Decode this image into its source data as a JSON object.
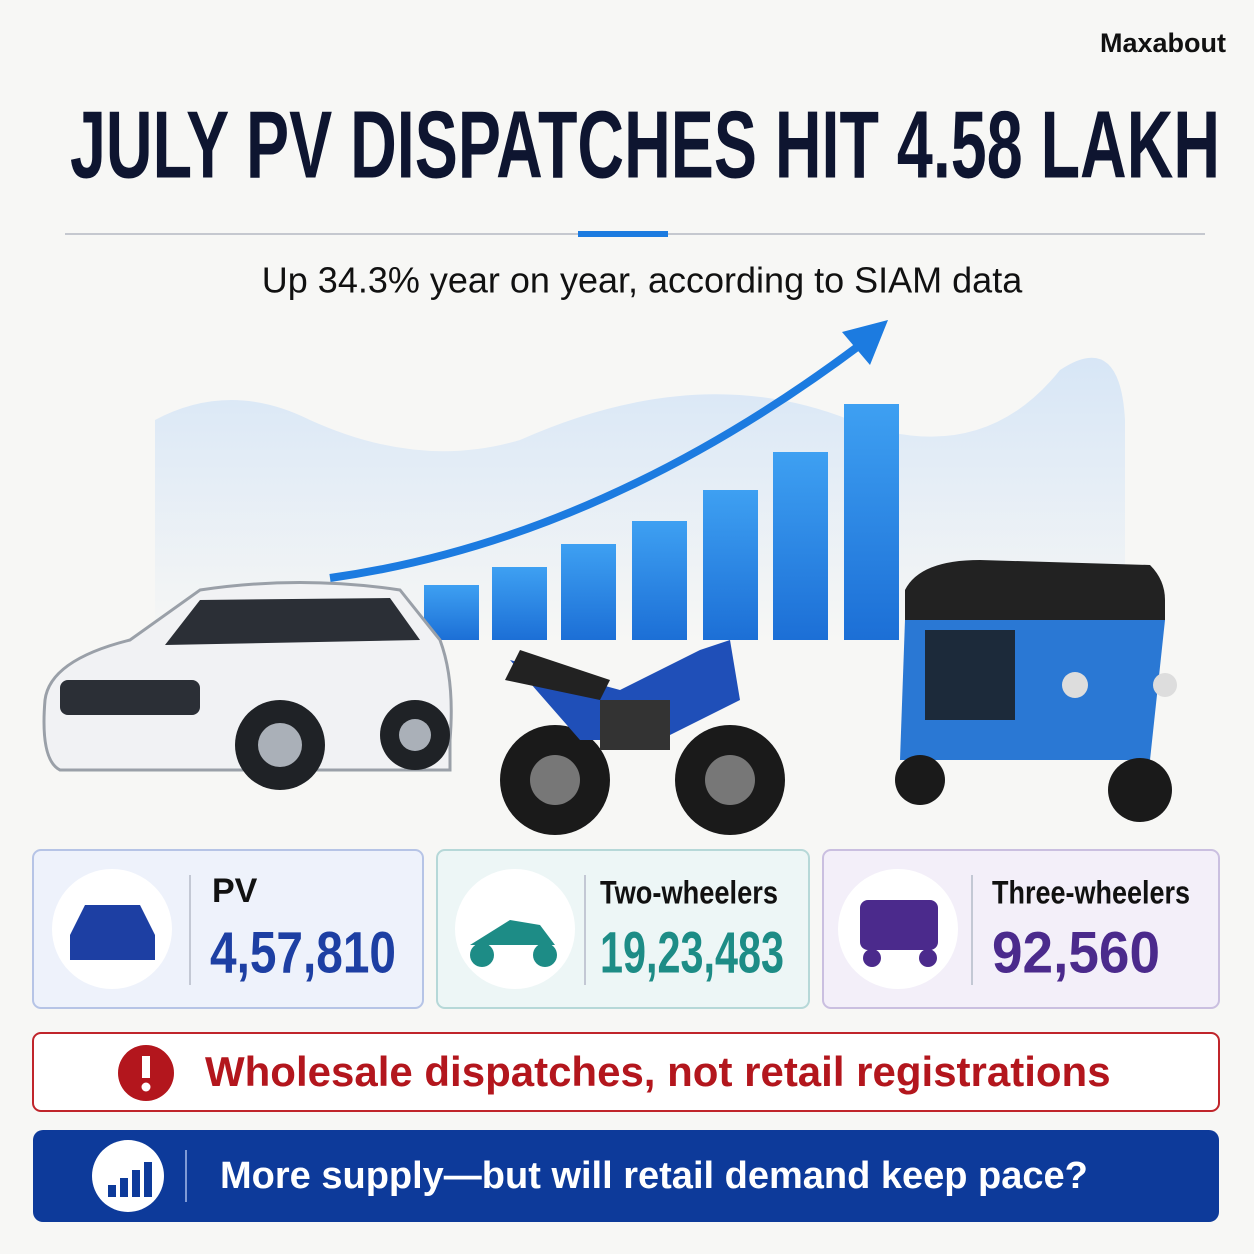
{
  "brand": "Maxabout",
  "title": "JULY PV DISPATCHES HIT 4.58 LAKH",
  "subtitle": "Up 34.3% year on year, according to SIAM data",
  "stats": [
    {
      "label": "PV",
      "value": "4,57,810"
    },
    {
      "label": "Two-wheelers",
      "value": "19,23,483"
    },
    {
      "label": "Three-wheelers",
      "value": "92,560"
    }
  ],
  "note": "Wholesale dispatches, not retail registrations",
  "question": "More supply—but will retail demand keep pace?"
}
